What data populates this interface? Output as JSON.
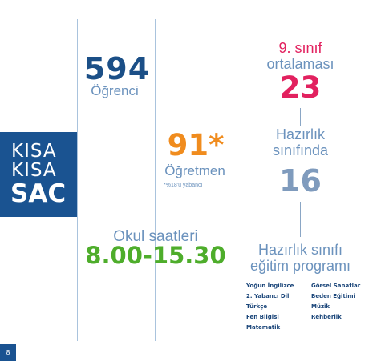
{
  "logo": {
    "line1": "KISA",
    "line2": "KISA",
    "line3": "SAC"
  },
  "students": {
    "count": "594",
    "label": "Öğrenci"
  },
  "teachers": {
    "count": "91*",
    "label": "Öğretmen",
    "note": "*%18'u yabancı"
  },
  "grade9": {
    "title_line1": "9. sınıf",
    "title_line2": "ortalaması",
    "value": "23"
  },
  "prep": {
    "title_line1": "Hazırlık",
    "title_line2": "sınıfında",
    "value": "16"
  },
  "school_hours": {
    "title": "Okul saatleri",
    "value": "8.00-15.30"
  },
  "prep_program": {
    "title_line1": "Hazırlık sınıfı",
    "title_line2": "eğitim programı",
    "left_items": [
      "Yoğun İngilizce",
      "2. Yabancı Dil",
      "Türkçe",
      "Fen Bilgisi",
      "Matematik"
    ],
    "right_items": [
      "Görsel Sanatlar",
      "Beden Eğitimi",
      "Müzik",
      "Rehberlik"
    ]
  },
  "page": {
    "number": "8"
  },
  "colors": {
    "brand_blue": "#1a5391",
    "label_blue": "#6b92bd",
    "magenta": "#e2215f",
    "orange": "#f08c1e",
    "green": "#4ead2b",
    "slate": "#7f9bbd"
  }
}
